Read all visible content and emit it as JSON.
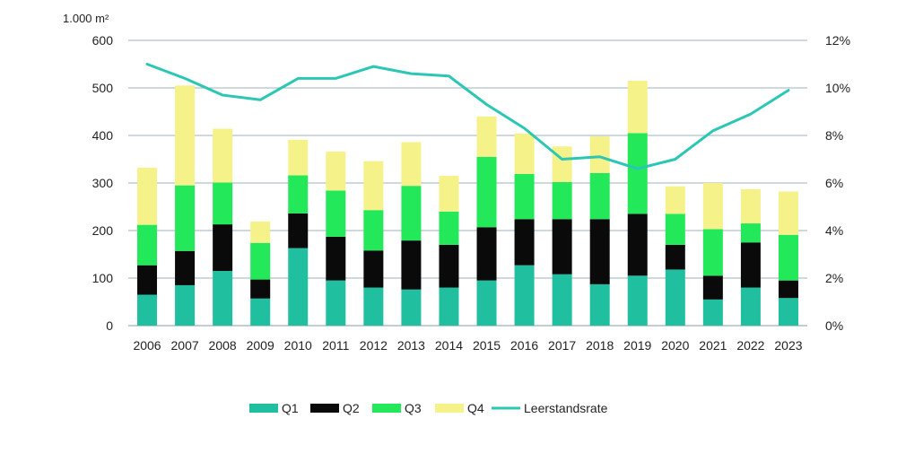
{
  "chart_data": {
    "type": "bar",
    "stacked": true,
    "categories": [
      "2006",
      "2007",
      "2008",
      "2009",
      "2010",
      "2011",
      "2012",
      "2013",
      "2014",
      "2015",
      "2016",
      "2017",
      "2018",
      "2019",
      "2020",
      "2021",
      "2022",
      "2023"
    ],
    "y_unit_label": "1.000  m²",
    "ylim": [
      0,
      600
    ],
    "y_ticks": [
      0,
      100,
      200,
      300,
      400,
      500,
      600
    ],
    "y2lim": [
      0,
      12
    ],
    "y2_ticks": [
      "0%",
      "2%",
      "4%",
      "6%",
      "8%",
      "10%",
      "12%"
    ],
    "grid": true,
    "legend_position": "bottom",
    "series": [
      {
        "name": "Q1",
        "kind": "bar",
        "color": "#1fbf9f",
        "values": [
          65,
          85,
          115,
          57,
          163,
          95,
          80,
          76,
          80,
          95,
          127,
          108,
          87,
          105,
          118,
          55,
          80,
          58
        ]
      },
      {
        "name": "Q2",
        "kind": "bar",
        "color": "#0a0a0a",
        "values": [
          62,
          72,
          98,
          40,
          73,
          92,
          78,
          103,
          90,
          112,
          97,
          116,
          137,
          130,
          52,
          50,
          95,
          37
        ]
      },
      {
        "name": "Q3",
        "kind": "bar",
        "color": "#22e85a",
        "values": [
          85,
          138,
          88,
          77,
          80,
          97,
          85,
          115,
          70,
          148,
          95,
          78,
          97,
          170,
          65,
          98,
          40,
          96
        ]
      },
      {
        "name": "Q4",
        "kind": "bar",
        "color": "#f6f28a",
        "values": [
          120,
          210,
          113,
          45,
          75,
          82,
          103,
          92,
          75,
          85,
          85,
          75,
          77,
          110,
          58,
          97,
          72,
          91
        ]
      },
      {
        "name": "Leerstandsrate",
        "kind": "line",
        "axis": "right",
        "color": "#2cc7b4",
        "values": [
          11.0,
          10.4,
          9.7,
          9.5,
          10.4,
          10.4,
          10.9,
          10.6,
          10.5,
          9.3,
          8.3,
          7.0,
          7.1,
          6.6,
          7.0,
          8.2,
          8.9,
          9.9
        ]
      }
    ]
  }
}
